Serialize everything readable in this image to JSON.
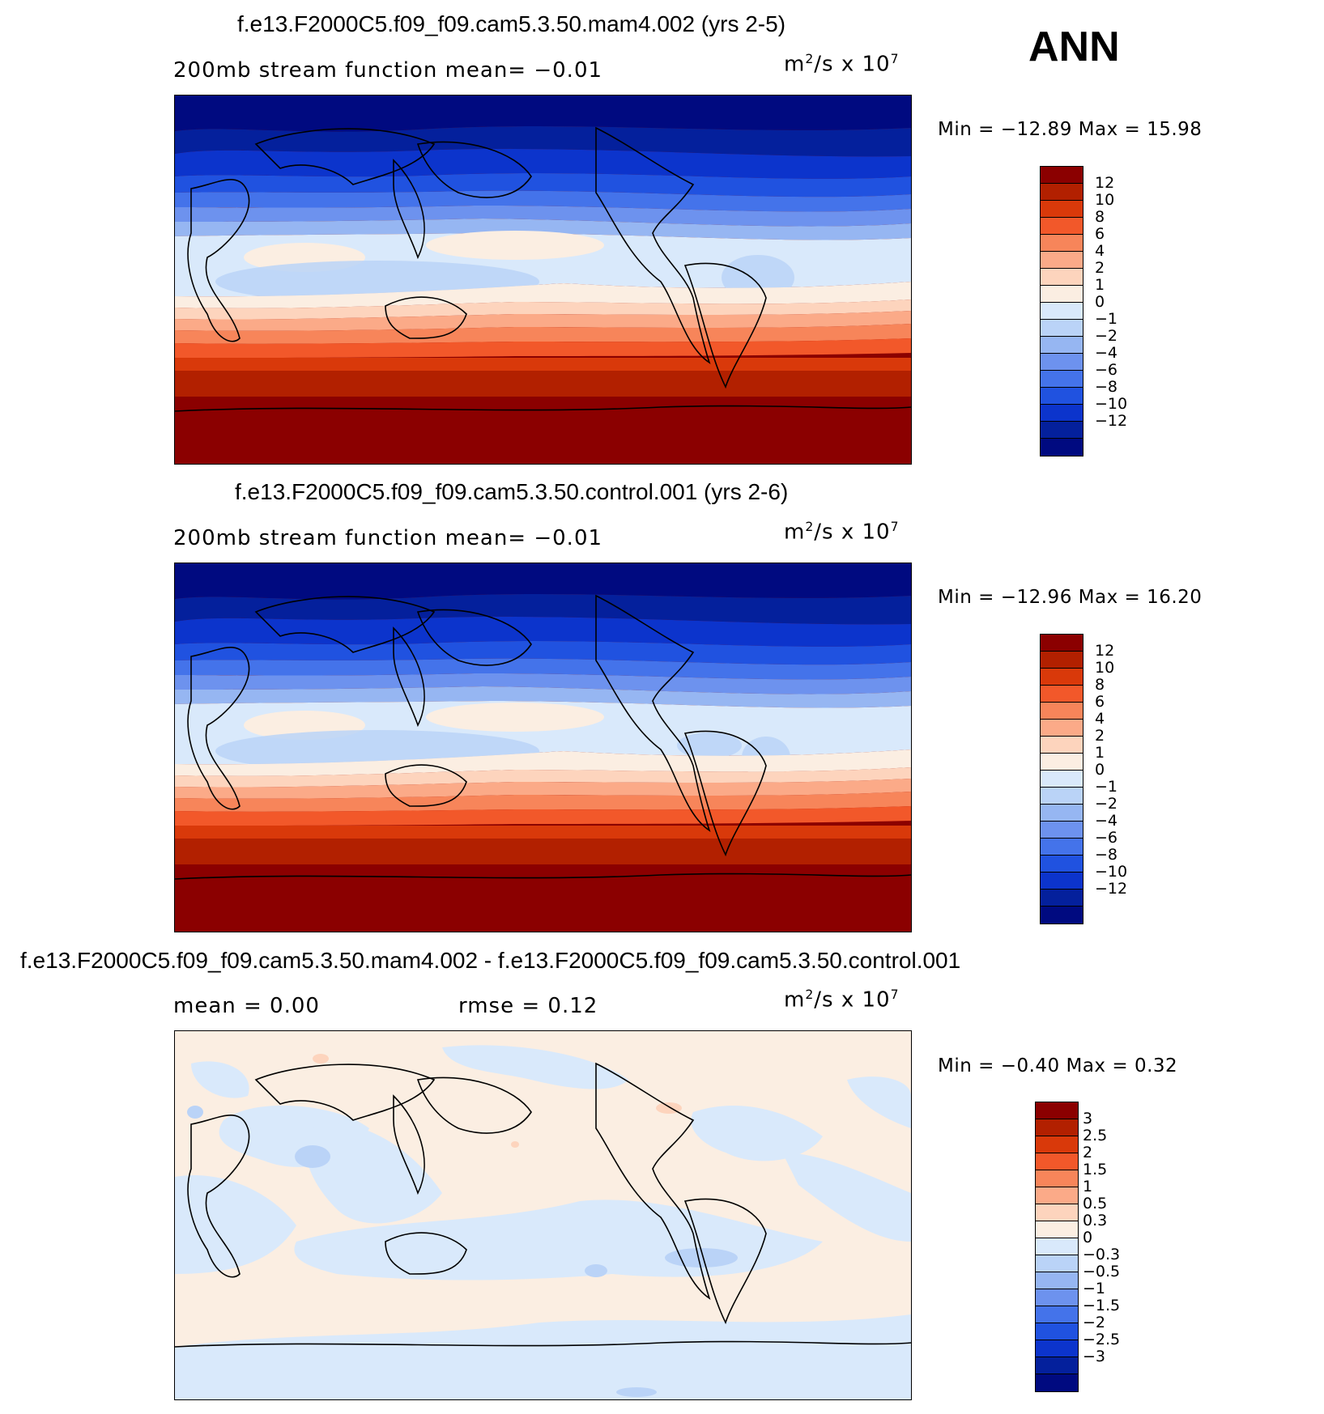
{
  "season": "ANN",
  "panels": [
    {
      "title": "f.e13.F2000C5.f09_f09.cam5.3.50.mam4.002 (yrs 2-5)",
      "left_label": "200mb stream function   mean=  −0.01",
      "units_base": "m",
      "units_mid": "/s x 10",
      "units_exp2": "2",
      "units_exp7": "7",
      "minmax": "Min = −12.89 Max =   15.98",
      "colorbar": {
        "colors": [
          "#8b0000",
          "#b22000",
          "#d9390a",
          "#f2582a",
          "#f7855a",
          "#fbaa88",
          "#fdd4bd",
          "#fbeee2",
          "#d9e9fb",
          "#bad3f7",
          "#96b6f2",
          "#6d92ee",
          "#4473ea",
          "#2052e0",
          "#0c34cc",
          "#04209c",
          "#000a80"
        ],
        "labels": [
          "12",
          "10",
          "8",
          "6",
          "4",
          "2",
          "1",
          "0",
          "−1",
          "−2",
          "−4",
          "−6",
          "−8",
          "−10",
          "−12"
        ]
      }
    },
    {
      "title": "f.e13.F2000C5.f09_f09.cam5.3.50.control.001 (yrs 2-6)",
      "left_label": "200mb stream function   mean=  −0.01",
      "units_base": "m",
      "units_mid": "/s x 10",
      "units_exp2": "2",
      "units_exp7": "7",
      "minmax": "Min = −12.96 Max =   16.20",
      "colorbar": {
        "colors": [
          "#8b0000",
          "#b22000",
          "#d9390a",
          "#f2582a",
          "#f7855a",
          "#fbaa88",
          "#fdd4bd",
          "#fbeee2",
          "#d9e9fb",
          "#bad3f7",
          "#96b6f2",
          "#6d92ee",
          "#4473ea",
          "#2052e0",
          "#0c34cc",
          "#04209c",
          "#000a80"
        ],
        "labels": [
          "12",
          "10",
          "8",
          "6",
          "4",
          "2",
          "1",
          "0",
          "−1",
          "−2",
          "−4",
          "−6",
          "−8",
          "−10",
          "−12"
        ]
      }
    },
    {
      "title": "f.e13.F2000C5.f09_f09.cam5.3.50.mam4.002 - f.e13.F2000C5.f09_f09.cam5.3.50.control.001",
      "left_label": "mean =    0.00",
      "mid_label": "rmse =    0.12",
      "units_base": "m",
      "units_mid": "/s x 10",
      "units_exp2": "2",
      "units_exp7": "7",
      "minmax": "Min =  −0.40 Max =   0.32",
      "colorbar": {
        "colors": [
          "#8b0000",
          "#b22000",
          "#d9390a",
          "#f2582a",
          "#f7855a",
          "#fbaa88",
          "#fdd4bd",
          "#fbeee2",
          "#d9e9fb",
          "#bad3f7",
          "#96b6f2",
          "#6d92ee",
          "#4473ea",
          "#2052e0",
          "#0c34cc",
          "#04209c",
          "#000a80"
        ],
        "labels": [
          "3",
          "2.5",
          "2",
          "1.5",
          "1",
          "0.5",
          "0.3",
          "0",
          "−0.3",
          "−0.5",
          "−1",
          "−1.5",
          "−2",
          "−2.5",
          "−3"
        ]
      }
    }
  ]
}
